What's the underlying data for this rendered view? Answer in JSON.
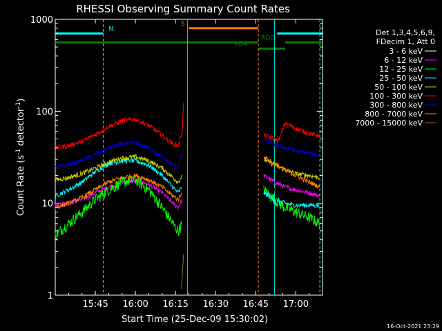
{
  "chart_data": {
    "type": "line",
    "title": "RHESSI Observing Summary Count Rates",
    "xlabel": "Start Time (25-Dec-09 15:30:02)",
    "ylabel_main": "Count Rate (s",
    "ylabel_sup1": "-1",
    "ylabel_mid": " detector",
    "ylabel_sup2": "-1",
    "ylabel_end": ")",
    "yscale": "log",
    "ylim": [
      1,
      1000
    ],
    "xlim_minutes": [
      0,
      100
    ],
    "x_ticks": [
      {
        "m": 15,
        "label": "15:45"
      },
      {
        "m": 30,
        "label": "16:00"
      },
      {
        "m": 45,
        "label": "16:15"
      },
      {
        "m": 60,
        "label": "16:30"
      },
      {
        "m": 75,
        "label": "16:45"
      },
      {
        "m": 90,
        "label": "17:00"
      }
    ],
    "y_ticks": [
      {
        "v": 1,
        "label": "1"
      },
      {
        "v": 10,
        "label": "10"
      },
      {
        "v": 100,
        "label": "100"
      },
      {
        "v": 1000,
        "label": "1000"
      }
    ],
    "legend": {
      "placement": "right",
      "header": [
        "Det 1,3,4,5,6,9,",
        "FDecim 1, Att 0"
      ]
    },
    "flags": [
      {
        "label": "N",
        "color": "#00ffff",
        "segments": [
          [
            0,
            18
          ],
          [
            83,
            100
          ]
        ],
        "level": 700,
        "label_m": 20
      },
      {
        "label": "S",
        "color": "#ff8000",
        "segments": [
          [
            50,
            76
          ]
        ],
        "level": 800,
        "label_m": 47
      },
      {
        "label": "RD0",
        "color": "#008000",
        "segments": [
          [
            0,
            76
          ],
          [
            86,
            100
          ]
        ],
        "level": 560,
        "label_m": 77
      },
      {
        "label": "RD4",
        "color": "#008000",
        "segments": [
          [
            76,
            86
          ]
        ],
        "level": 480,
        "label_m": 67
      }
    ],
    "markers": [
      {
        "m": 18,
        "color": "#00ffff",
        "dash": true
      },
      {
        "m": 49.5,
        "color": "#ff8000",
        "dash": false
      },
      {
        "m": 76,
        "color": "#ff8000",
        "dash": true
      },
      {
        "m": 82,
        "color": "#00ffff",
        "dash": false
      },
      {
        "m": 99,
        "color": "#00ffff",
        "dash": true
      }
    ],
    "series": [
      {
        "name": "3 - 6 keV",
        "color": "#000000",
        "segA": {
          "x": [
            0,
            5,
            10,
            15,
            20,
            25,
            30,
            35,
            40,
            44,
            46,
            47.5
          ],
          "y": [
            9,
            9.5,
            10.5,
            12,
            14,
            16,
            16,
            14,
            12,
            9,
            8,
            10
          ]
        },
        "segB": {
          "x": [
            78,
            82,
            86,
            90,
            95,
            99
          ],
          "y": [
            16,
            14,
            13,
            12,
            11,
            10.5
          ]
        }
      },
      {
        "name": "6 - 12 keV",
        "color": "#ff00ff",
        "segA": {
          "x": [
            0,
            5,
            10,
            15,
            20,
            25,
            30,
            35,
            40,
            44,
            46,
            47.5
          ],
          "y": [
            9.5,
            10,
            11,
            13,
            15,
            17,
            17.5,
            16,
            13,
            10,
            9,
            11
          ]
        },
        "segB": {
          "x": [
            78,
            82,
            86,
            90,
            95,
            99
          ],
          "y": [
            20,
            17,
            15,
            14,
            13,
            12
          ]
        }
      },
      {
        "name": "12 - 25 keV",
        "color": "#00ff00",
        "segA": {
          "x": [
            0,
            5,
            10,
            15,
            20,
            25,
            30,
            35,
            40,
            44,
            46,
            47.5
          ],
          "y": [
            4.5,
            6,
            8,
            11,
            14,
            17,
            18,
            14,
            9,
            6,
            5,
            6
          ]
        },
        "segB": {
          "x": [
            78,
            82,
            86,
            90,
            95,
            99
          ],
          "y": [
            14,
            11,
            9,
            8,
            7,
            6
          ]
        }
      },
      {
        "name": "25 - 50 keV",
        "color": "#00ffff",
        "segA": {
          "x": [
            0,
            5,
            10,
            15,
            20,
            25,
            30,
            35,
            40,
            44,
            46,
            47.5
          ],
          "y": [
            12,
            14,
            17,
            22,
            27,
            29,
            29,
            26,
            20,
            15,
            13,
            15
          ]
        },
        "segB": {
          "x": [
            78,
            82,
            86,
            90,
            95,
            99
          ],
          "y": [
            13,
            11,
            10,
            9.5,
            9.5,
            9.5
          ]
        }
      },
      {
        "name": "50 - 100 keV",
        "color": "#d4d400",
        "segA": {
          "x": [
            0,
            5,
            10,
            15,
            20,
            25,
            30,
            35,
            40,
            44,
            46,
            47.5
          ],
          "y": [
            18,
            19,
            21,
            24,
            28,
            31,
            32,
            29,
            24,
            19,
            17,
            20
          ]
        },
        "segB": {
          "x": [
            78,
            82,
            86,
            90,
            95,
            99
          ],
          "y": [
            30,
            26,
            23,
            21,
            20,
            19
          ]
        }
      },
      {
        "name": "100 - 300 keV",
        "color": "#ff0000",
        "segA": {
          "x": [
            0,
            5,
            10,
            15,
            20,
            25,
            30,
            35,
            40,
            44,
            46,
            47.5,
            48.2
          ],
          "y": [
            40,
            42,
            47,
            56,
            68,
            79,
            82,
            70,
            55,
            44,
            42,
            60,
            160
          ]
        },
        "segB": {
          "x": [
            78,
            82,
            83.5,
            86,
            90,
            95,
            99
          ],
          "y": [
            55,
            50,
            47,
            75,
            65,
            57,
            55
          ]
        }
      },
      {
        "name": "300 - 800 keV",
        "color": "#0000cc",
        "segA": {
          "x": [
            0,
            5,
            10,
            15,
            20,
            25,
            30,
            35,
            40,
            44,
            46,
            47.5
          ],
          "y": [
            24,
            26,
            29,
            34,
            40,
            44,
            45,
            40,
            32,
            26,
            25,
            35
          ]
        },
        "segB": {
          "x": [
            78,
            82,
            86,
            90,
            95,
            99
          ],
          "y": [
            50,
            44,
            40,
            37,
            35,
            33
          ]
        }
      },
      {
        "name": "800 - 7000 keV",
        "color": "#ff8000",
        "segA": {
          "x": [
            0,
            5,
            10,
            15,
            20,
            25,
            30,
            35,
            40,
            44,
            46,
            47.5
          ],
          "y": [
            9,
            10,
            11.5,
            14,
            17,
            19,
            20,
            18,
            15,
            12,
            11,
            13
          ]
        },
        "segB": {
          "x": [
            78,
            82,
            86,
            90,
            95,
            99
          ],
          "y": [
            32,
            27,
            23,
            20,
            17,
            15
          ]
        }
      },
      {
        "name": "7000 - 15000 keV",
        "color": "#8b6914",
        "segA": {
          "x": [
            47.2,
            47.6,
            48.0
          ],
          "y": [
            1.2,
            1.8,
            2.8
          ]
        },
        "segB": null
      }
    ],
    "timestamp": "16-Oct-2021 23:29"
  }
}
